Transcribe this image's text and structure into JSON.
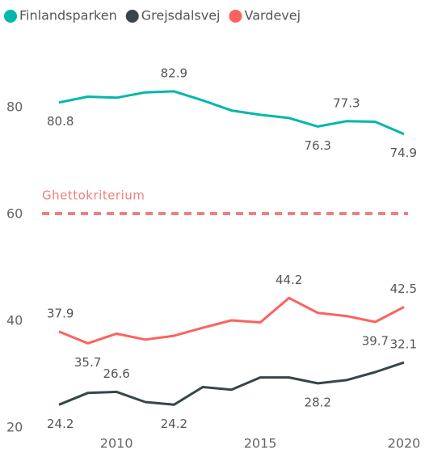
{
  "chart_data": {
    "type": "line",
    "x": [
      2008,
      2009,
      2010,
      2011,
      2012,
      2013,
      2014,
      2015,
      2016,
      2017,
      2018,
      2019,
      2020
    ],
    "xlim": [
      2008,
      2020
    ],
    "xticks": [
      2010,
      2015,
      2020
    ],
    "ylim": [
      20,
      90
    ],
    "yticks": [
      20,
      40,
      60,
      80
    ],
    "reference_line": {
      "value": 60,
      "label": "Ghettokriterium",
      "color": "#f07f7f"
    },
    "series": [
      {
        "name": "Finlandsparken",
        "color": "#01b8aa",
        "values": [
          80.8,
          81.9,
          81.7,
          82.7,
          82.9,
          81.2,
          79.3,
          78.5,
          77.9,
          76.3,
          77.3,
          77.2,
          74.9
        ],
        "value_labels": [
          "80.8",
          null,
          null,
          null,
          "82.9",
          null,
          null,
          null,
          null,
          "76.3",
          "77.3",
          null,
          "74.9"
        ]
      },
      {
        "name": "Grejsdalsvej",
        "color": "#374649",
        "values": [
          24.2,
          26.4,
          26.6,
          24.7,
          24.2,
          27.5,
          27.0,
          29.3,
          29.3,
          28.2,
          28.8,
          30.3,
          32.1
        ],
        "value_labels": [
          "24.2",
          null,
          "26.6",
          null,
          "24.2",
          null,
          null,
          null,
          null,
          "28.2",
          null,
          null,
          "32.1"
        ]
      },
      {
        "name": "Vardevej",
        "color": "#fd625e",
        "values": [
          37.9,
          35.7,
          37.5,
          36.4,
          37.1,
          38.6,
          40.0,
          39.6,
          44.2,
          41.4,
          40.8,
          39.7,
          42.5
        ],
        "value_labels": [
          "37.9",
          "35.7",
          null,
          null,
          null,
          null,
          null,
          null,
          "44.2",
          null,
          null,
          "39.7",
          "42.5"
        ]
      }
    ]
  }
}
